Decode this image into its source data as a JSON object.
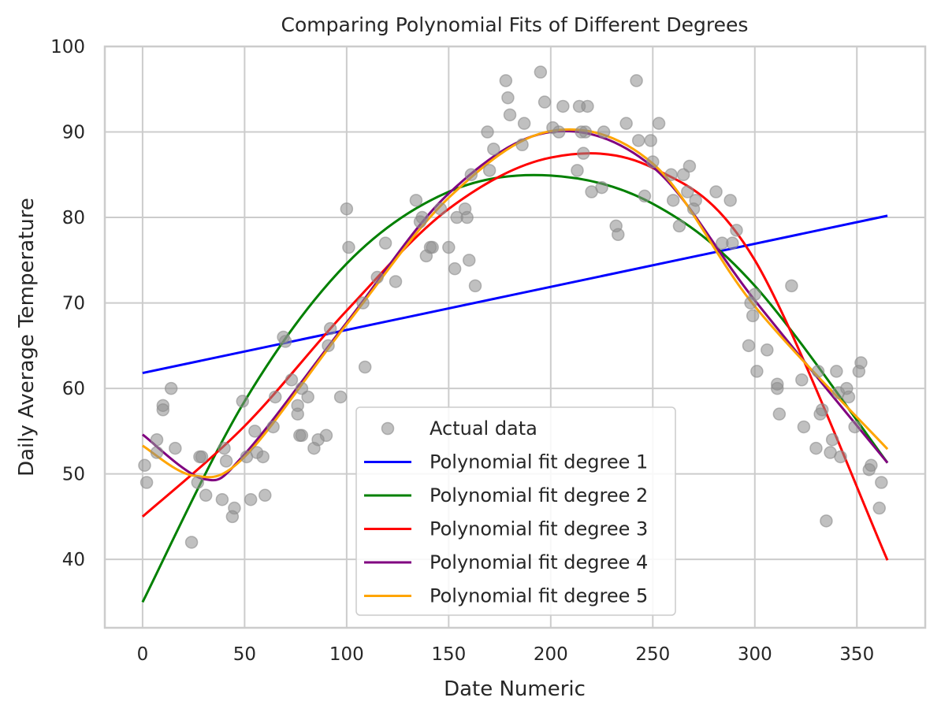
{
  "chart_data": {
    "type": "scatter",
    "title": "Comparing Polynomial Fits of Different Degrees",
    "xlabel": "Date Numeric",
    "ylabel": "Daily Average Temperature",
    "xlim": [
      -18.5,
      383.5
    ],
    "ylim": [
      32,
      100
    ],
    "xticks": [
      0,
      50,
      100,
      150,
      200,
      250,
      300,
      350
    ],
    "yticks": [
      40,
      50,
      60,
      70,
      80,
      90,
      100
    ],
    "grid": true,
    "legend_position": "bottom-center",
    "scatter": {
      "name": "Actual data",
      "color": "#8c8c8c",
      "points": [
        [
          1,
          51
        ],
        [
          2,
          49
        ],
        [
          7,
          52.5
        ],
        [
          7,
          54
        ],
        [
          10,
          58
        ],
        [
          10,
          57.5
        ],
        [
          14,
          60
        ],
        [
          16,
          53
        ],
        [
          24,
          42
        ],
        [
          27,
          49
        ],
        [
          28,
          52
        ],
        [
          29,
          52
        ],
        [
          31,
          47.5
        ],
        [
          39,
          47
        ],
        [
          40,
          53
        ],
        [
          41,
          51.5
        ],
        [
          44,
          45
        ],
        [
          45,
          46
        ],
        [
          49,
          58.5
        ],
        [
          51,
          52
        ],
        [
          53,
          47
        ],
        [
          55,
          55
        ],
        [
          56,
          52.5
        ],
        [
          59,
          52
        ],
        [
          60,
          47.5
        ],
        [
          64,
          55.5
        ],
        [
          65,
          59
        ],
        [
          69,
          66
        ],
        [
          70,
          65.5
        ],
        [
          73,
          61
        ],
        [
          76,
          57
        ],
        [
          76,
          58
        ],
        [
          77,
          54.5
        ],
        [
          78,
          54.5
        ],
        [
          78,
          60
        ],
        [
          81,
          59
        ],
        [
          84,
          53
        ],
        [
          86,
          54
        ],
        [
          90,
          54.5
        ],
        [
          91,
          65
        ],
        [
          92,
          67
        ],
        [
          97,
          59
        ],
        [
          100,
          81
        ],
        [
          101,
          76.5
        ],
        [
          108,
          70
        ],
        [
          109,
          62.5
        ],
        [
          115,
          73
        ],
        [
          119,
          77
        ],
        [
          124,
          72.5
        ],
        [
          134,
          82
        ],
        [
          136,
          79.5
        ],
        [
          137,
          80
        ],
        [
          139,
          75.5
        ],
        [
          141,
          76.5
        ],
        [
          142,
          76.5
        ],
        [
          146,
          81
        ],
        [
          150,
          76.5
        ],
        [
          153,
          74
        ],
        [
          154,
          80
        ],
        [
          158,
          81
        ],
        [
          159,
          80
        ],
        [
          160,
          75
        ],
        [
          161,
          85
        ],
        [
          163,
          72
        ],
        [
          169,
          90
        ],
        [
          170,
          85.5
        ],
        [
          172,
          88
        ],
        [
          178,
          96
        ],
        [
          179,
          94
        ],
        [
          180,
          92
        ],
        [
          186,
          88.5
        ],
        [
          187,
          91
        ],
        [
          195,
          97
        ],
        [
          197,
          93.5
        ],
        [
          201,
          90.5
        ],
        [
          204,
          90
        ],
        [
          206,
          93
        ],
        [
          213,
          85.5
        ],
        [
          214,
          93
        ],
        [
          215,
          90
        ],
        [
          216,
          87.5
        ],
        [
          217,
          90
        ],
        [
          218,
          93
        ],
        [
          220,
          83
        ],
        [
          225,
          83.5
        ],
        [
          226,
          90
        ],
        [
          232,
          79
        ],
        [
          233,
          78
        ],
        [
          237,
          91
        ],
        [
          242,
          96
        ],
        [
          243,
          89
        ],
        [
          246,
          82.5
        ],
        [
          249,
          89
        ],
        [
          250,
          86.5
        ],
        [
          253,
          91
        ],
        [
          259,
          85
        ],
        [
          260,
          82
        ],
        [
          263,
          79
        ],
        [
          265,
          85
        ],
        [
          267,
          83
        ],
        [
          268,
          86
        ],
        [
          270,
          81
        ],
        [
          271,
          82
        ],
        [
          281,
          83
        ],
        [
          284,
          77
        ],
        [
          288,
          82
        ],
        [
          289,
          77
        ],
        [
          291,
          78.5
        ],
        [
          297,
          65
        ],
        [
          298,
          70
        ],
        [
          299,
          68.5
        ],
        [
          300,
          71
        ],
        [
          301,
          62
        ],
        [
          306,
          64.5
        ],
        [
          311,
          60.5
        ],
        [
          311,
          60
        ],
        [
          312,
          57
        ],
        [
          318,
          72
        ],
        [
          323,
          61
        ],
        [
          324,
          55.5
        ],
        [
          330,
          53
        ],
        [
          331,
          62
        ],
        [
          332,
          57
        ],
        [
          333,
          57.5
        ],
        [
          335,
          44.5
        ],
        [
          337,
          52.5
        ],
        [
          338,
          54
        ],
        [
          340,
          62
        ],
        [
          341,
          59.5
        ],
        [
          342,
          52
        ],
        [
          345,
          60
        ],
        [
          346,
          59
        ],
        [
          349,
          55.5
        ],
        [
          351,
          62
        ],
        [
          352,
          63
        ],
        [
          356,
          50.5
        ],
        [
          357,
          51
        ],
        [
          361,
          46
        ],
        [
          362,
          49
        ]
      ]
    },
    "series": [
      {
        "name": "Polynomial fit degree 1",
        "color": "#0000ff",
        "x": [
          0,
          365
        ],
        "y": [
          61.8,
          80.2
        ]
      },
      {
        "name": "Polynomial fit degree 2",
        "color": "#008000",
        "x": [
          0,
          50,
          100,
          150,
          200,
          250,
          300,
          365
        ],
        "y": [
          35.0,
          58.5,
          74.6,
          83.0,
          84.9,
          81.6,
          72.0,
          51.3
        ]
      },
      {
        "name": "Polynomial fit degree 3",
        "color": "#ff0000",
        "x": [
          0,
          50,
          100,
          150,
          200,
          250,
          300,
          365
        ],
        "y": [
          45.0,
          55.6,
          69.1,
          81.0,
          87.0,
          85.8,
          75.0,
          39.9
        ]
      },
      {
        "name": "Polynomial fit degree 4",
        "color": "#800080",
        "x": [
          0,
          30,
          50,
          100,
          150,
          200,
          250,
          300,
          365
        ],
        "y": [
          54.6,
          49.4,
          52.3,
          67.7,
          82.8,
          90.0,
          85.9,
          70.3,
          51.3
        ]
      },
      {
        "name": "Polynomial fit degree 5",
        "color": "#ffa500",
        "x": [
          0,
          25,
          50,
          100,
          150,
          200,
          250,
          300,
          365
        ],
        "y": [
          53.3,
          49.8,
          52.0,
          67.5,
          82.3,
          90.1,
          86.3,
          69.6,
          52.9
        ]
      }
    ]
  }
}
